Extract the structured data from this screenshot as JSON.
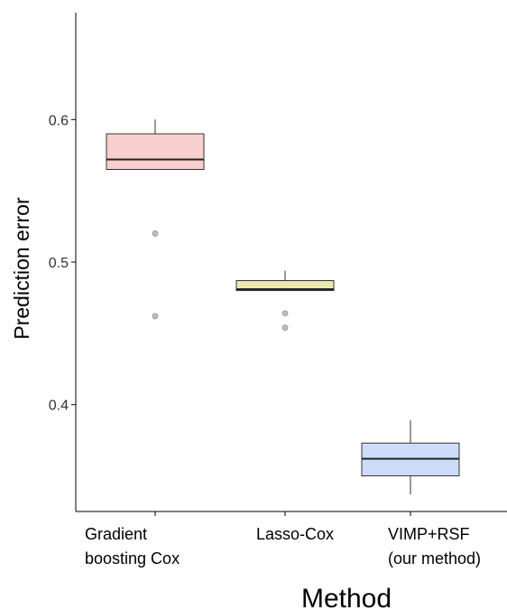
{
  "chart_data": {
    "type": "box",
    "title": "",
    "xlabel": "Method",
    "ylabel": "Prediction error",
    "ylim": [
      0.325,
      0.675
    ],
    "yticks": [
      "0.4",
      "0.5",
      "0.6"
    ],
    "grid": false,
    "legend": "none",
    "categories": [
      {
        "lines": [
          "Gradient",
          "boosting Cox"
        ]
      },
      {
        "lines": [
          "Lasso-Cox"
        ]
      },
      {
        "lines": [
          "VIMP+RSF",
          "(our method)"
        ]
      }
    ],
    "boxes": [
      {
        "whisker_low": 0.565,
        "q1": 0.565,
        "median": 0.572,
        "q3": 0.59,
        "whisker_high": 0.6,
        "outliers": [
          0.52,
          0.462
        ],
        "fill": "#f8cfcf"
      },
      {
        "whisker_low": 0.48,
        "q1": 0.48,
        "median": 0.481,
        "q3": 0.487,
        "whisker_high": 0.494,
        "outliers": [
          0.464,
          0.454
        ],
        "fill": "#ece6b3"
      },
      {
        "whisker_low": 0.337,
        "q1": 0.35,
        "median": 0.362,
        "q3": 0.373,
        "whisker_high": 0.389,
        "outliers": [],
        "fill": "#cddcfb"
      }
    ]
  }
}
